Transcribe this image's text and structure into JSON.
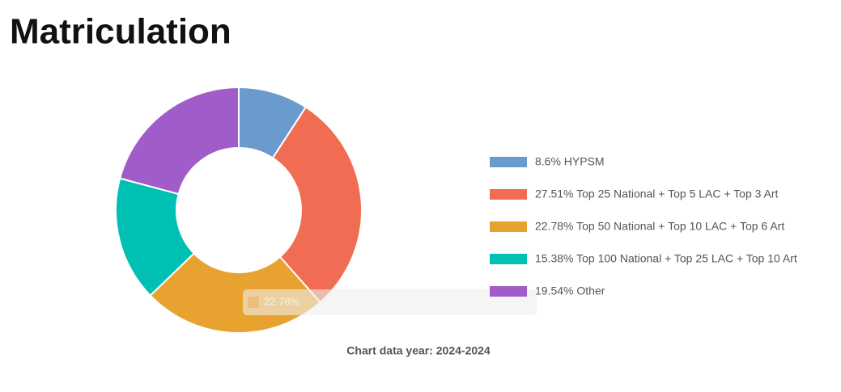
{
  "chart_data": {
    "type": "donut",
    "title": "Matriculation",
    "labels": [
      "8.6% HYPSM",
      "27.51% Top 25 National + Top 5 LAC + Top 3 Art",
      "22.78% Top 50 National + Top 10 LAC + Top 6 Art",
      "15.38% Top 100 National + Top 25 LAC + Top 10 Art",
      "19.54% Other"
    ],
    "values": [
      8.6,
      27.51,
      22.78,
      15.38,
      19.54
    ],
    "colors": [
      "#6a9bcc",
      "#f06c52",
      "#e8a22f",
      "#00bfb3",
      "#a05cc8"
    ],
    "legend": "right",
    "tooltip": "22.78%",
    "footnote": "Chart data year: 2024-2024"
  }
}
